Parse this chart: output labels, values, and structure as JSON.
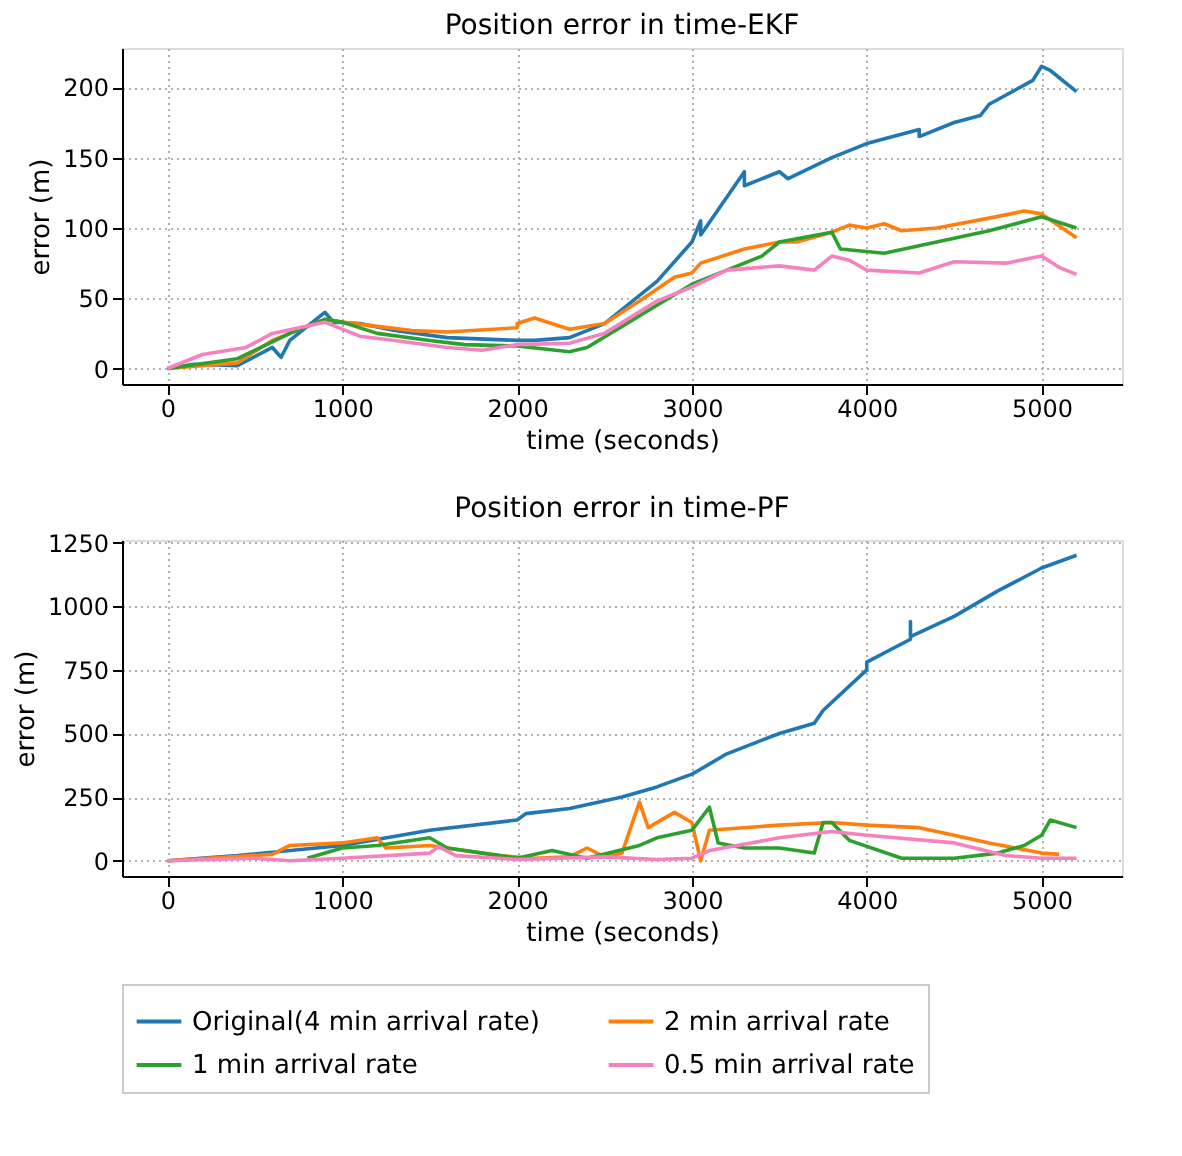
{
  "chart_data": [
    {
      "type": "line",
      "title": "Position error in time-EKF",
      "xlabel": "time (seconds)",
      "ylabel": "error (m)",
      "xlim": [
        -260,
        5460
      ],
      "ylim": [
        -11,
        228
      ],
      "xticks": [
        0,
        1000,
        2000,
        3000,
        4000,
        5000
      ],
      "yticks": [
        0,
        50,
        100,
        150,
        200
      ],
      "grid": true,
      "legend": "bottom",
      "line_style": "solid",
      "marker": "none",
      "series": [
        {
          "name": "Original(4 min arrival rate)",
          "color": "#1f77b4",
          "x": [
            0,
            150,
            400,
            600,
            650,
            700,
            900,
            950,
            1100,
            1300,
            1600,
            2000,
            2100,
            2300,
            2500,
            2800,
            3000,
            3050,
            3050,
            3300,
            3300,
            3500,
            3550,
            3800,
            4000,
            4300,
            4300,
            4500,
            4650,
            4700,
            4950,
            5000,
            5050,
            5200
          ],
          "values": [
            0,
            3,
            2,
            15,
            8,
            20,
            40,
            33,
            32,
            27,
            22,
            20,
            20,
            22,
            32,
            62,
            90,
            105,
            95,
            140,
            130,
            140,
            135,
            150,
            160,
            170,
            165,
            175,
            180,
            188,
            205,
            215,
            212,
            197
          ]
        },
        {
          "name": "2 min arrival rate",
          "color": "#ff7f0e",
          "x": [
            0,
            400,
            600,
            900,
            1000,
            1200,
            1400,
            1600,
            2000,
            2000,
            2100,
            2300,
            2500,
            2700,
            2900,
            3000,
            3050,
            3300,
            3500,
            3600,
            3800,
            3900,
            4000,
            4100,
            4200,
            4400,
            4700,
            4900,
            5000,
            5200
          ],
          "values": [
            0,
            4,
            20,
            35,
            33,
            30,
            27,
            26,
            29,
            32,
            36,
            28,
            32,
            48,
            65,
            68,
            75,
            85,
            90,
            90,
            97,
            102,
            100,
            103,
            98,
            100,
            107,
            112,
            110,
            93
          ]
        },
        {
          "name": "1 min arrival rate",
          "color": "#2ca02c",
          "x": [
            0,
            400,
            700,
            900,
            1000,
            1200,
            1500,
            1700,
            2000,
            2300,
            2400,
            2600,
            2800,
            3000,
            3300,
            3400,
            3500,
            3800,
            3850,
            4100,
            4400,
            4700,
            5000,
            5200
          ],
          "values": [
            0,
            7,
            25,
            35,
            33,
            25,
            20,
            17,
            16,
            12,
            15,
            30,
            45,
            60,
            75,
            80,
            90,
            97,
            85,
            82,
            90,
            98,
            108,
            100
          ]
        },
        {
          "name": "0.5 min arrival rate",
          "color": "#f781bf",
          "x": [
            0,
            200,
            450,
            600,
            900,
            1100,
            1300,
            1600,
            1800,
            2000,
            2300,
            2500,
            2800,
            3000,
            3200,
            3500,
            3700,
            3800,
            3900,
            4000,
            4300,
            4500,
            4800,
            5000,
            5100,
            5200
          ],
          "values": [
            0,
            10,
            15,
            25,
            33,
            23,
            20,
            15,
            13,
            17,
            18,
            25,
            48,
            58,
            70,
            73,
            70,
            80,
            77,
            70,
            68,
            76,
            75,
            80,
            72,
            67
          ]
        }
      ]
    },
    {
      "type": "line",
      "title": "Position error in time-PF",
      "xlabel": "time (seconds)",
      "ylabel": "error (m)",
      "xlim": [
        -260,
        5460
      ],
      "ylim": [
        -60,
        1260
      ],
      "xticks": [
        0,
        1000,
        2000,
        3000,
        4000,
        5000
      ],
      "yticks": [
        0,
        250,
        500,
        750,
        1000,
        1250
      ],
      "grid": true,
      "legend": "bottom",
      "line_style": "solid",
      "marker": "none",
      "series": [
        {
          "name": "Original(4 min arrival rate)",
          "color": "#1f77b4",
          "x": [
            0,
            400,
            1000,
            1500,
            2000,
            2050,
            2300,
            2600,
            2800,
            3000,
            3200,
            3500,
            3700,
            3750,
            4000,
            4000,
            4250,
            4250,
            4250,
            4500,
            4750,
            5000,
            5200
          ],
          "values": [
            0,
            20,
            60,
            120,
            160,
            185,
            205,
            250,
            290,
            340,
            420,
            500,
            540,
            590,
            750,
            780,
            870,
            940,
            880,
            960,
            1060,
            1150,
            1200
          ]
        },
        {
          "name": "2 min arrival rate",
          "color": "#ff7f0e",
          "x": [
            0,
            600,
            700,
            1000,
            1200,
            1250,
            1500,
            1900,
            2100,
            2300,
            2400,
            2500,
            2600,
            2700,
            2750,
            2900,
            3000,
            3050,
            3100,
            3500,
            3800,
            4000,
            4300,
            4500,
            4700,
            5000,
            5100
          ],
          "values": [
            0,
            25,
            60,
            70,
            90,
            50,
            60,
            20,
            10,
            15,
            50,
            15,
            30,
            230,
            130,
            190,
            150,
            0,
            120,
            140,
            150,
            140,
            130,
            100,
            70,
            30,
            25
          ]
        },
        {
          "name": "1 min arrival rate",
          "color": "#2ca02c",
          "x": [
            800,
            1000,
            1200,
            1500,
            1600,
            1900,
            2000,
            2200,
            2400,
            2700,
            2800,
            3000,
            3100,
            3150,
            3300,
            3500,
            3700,
            3750,
            3800,
            3900,
            4200,
            4500,
            4750,
            4900,
            5000,
            5050,
            5200
          ],
          "values": [
            10,
            50,
            60,
            90,
            50,
            20,
            10,
            40,
            10,
            60,
            90,
            120,
            210,
            70,
            50,
            50,
            30,
            150,
            150,
            80,
            10,
            10,
            30,
            60,
            100,
            160,
            130
          ]
        },
        {
          "name": "0.5 min arrival rate",
          "color": "#f781bf",
          "x": [
            0,
            500,
            700,
            1000,
            1500,
            1550,
            1650,
            2000,
            2500,
            2800,
            3000,
            3100,
            3500,
            3800,
            4000,
            4500,
            4800,
            5000,
            5200
          ],
          "values": [
            0,
            10,
            0,
            10,
            30,
            55,
            20,
            5,
            15,
            5,
            10,
            40,
            90,
            115,
            100,
            70,
            20,
            10,
            10
          ]
        }
      ]
    }
  ]
}
